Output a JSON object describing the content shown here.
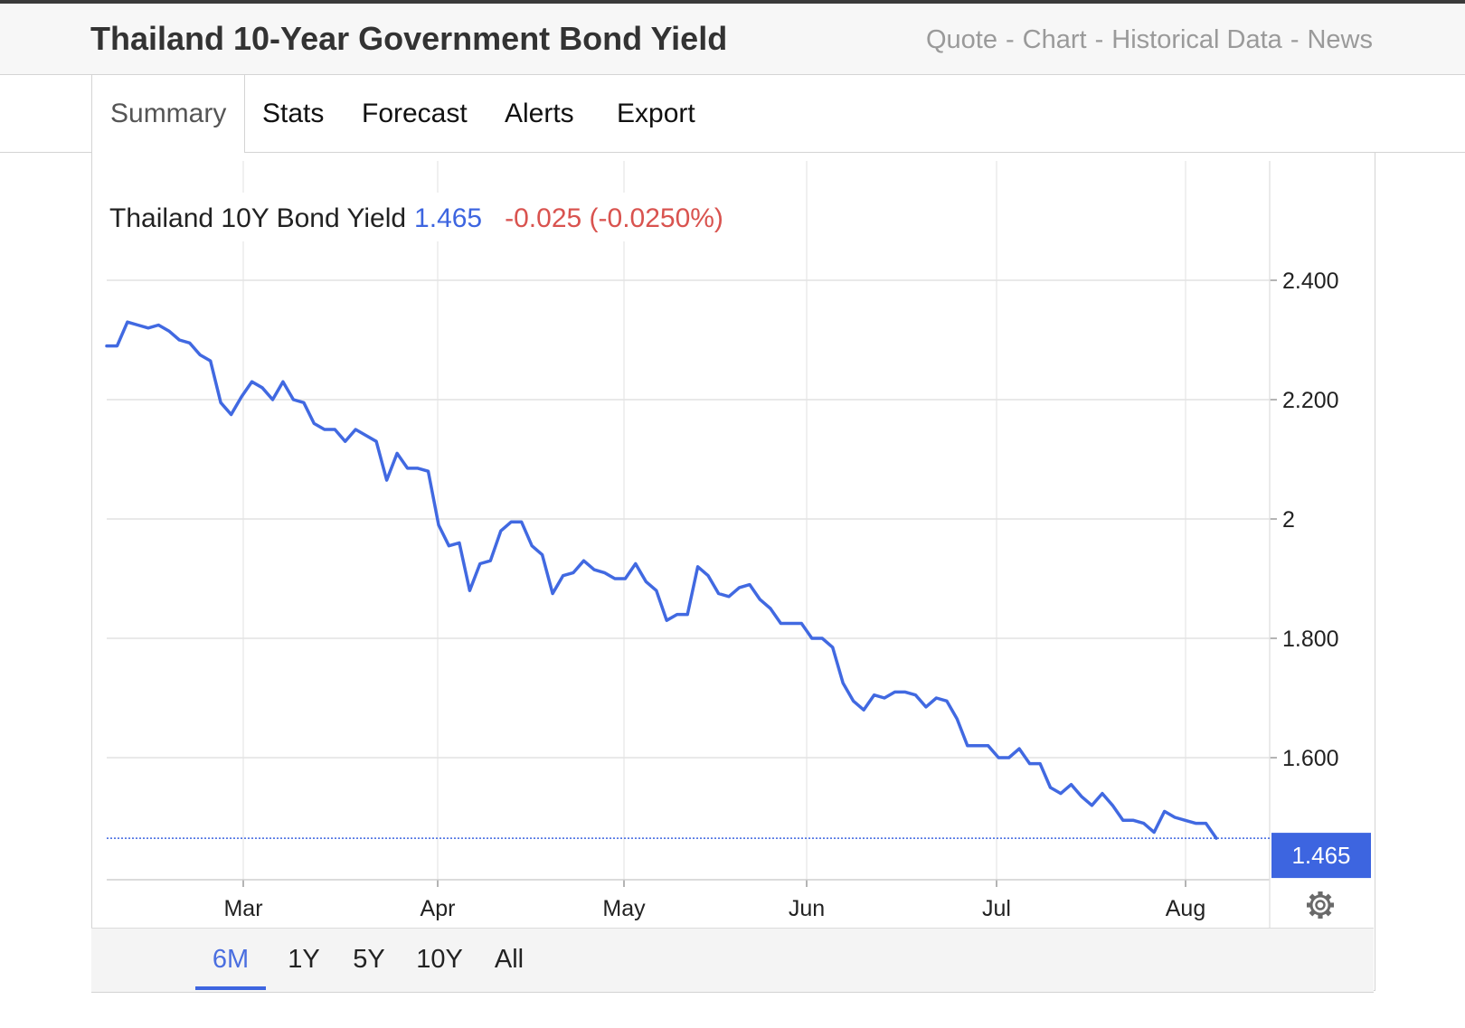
{
  "header": {
    "title": "Thailand 10-Year Government Bond Yield",
    "links": [
      "Quote",
      "Chart",
      "Historical Data",
      "News"
    ],
    "separator": "-"
  },
  "tabs": [
    "Summary",
    "Stats",
    "Forecast",
    "Alerts",
    "Export"
  ],
  "legend": {
    "name": "Thailand 10Y Bond Yield",
    "value": "1.465",
    "change": "-0.025 (-0.0250%)"
  },
  "last_price_tag": "1.465",
  "ranges": [
    "6M",
    "1Y",
    "5Y",
    "10Y",
    "All"
  ],
  "active_range": "6M",
  "colors": {
    "line": "#4169e1",
    "change_negative": "#d9534f",
    "value": "#3d65e0"
  },
  "icons": {
    "settings": "gear-icon"
  },
  "chart_data": {
    "type": "line",
    "series": [
      {
        "name": "Thailand 10Y Bond Yield",
        "values": [
          2.29,
          2.29,
          2.33,
          2.325,
          2.32,
          2.325,
          2.315,
          2.3,
          2.295,
          2.275,
          2.265,
          2.195,
          2.175,
          2.205,
          2.23,
          2.22,
          2.2,
          2.23,
          2.2,
          2.195,
          2.16,
          2.15,
          2.15,
          2.13,
          2.15,
          2.14,
          2.13,
          2.065,
          2.11,
          2.085,
          2.085,
          2.08,
          1.99,
          1.955,
          1.96,
          1.88,
          1.925,
          1.93,
          1.98,
          1.995,
          1.995,
          1.955,
          1.94,
          1.875,
          1.905,
          1.91,
          1.93,
          1.915,
          1.91,
          1.9,
          1.9,
          1.925,
          1.895,
          1.88,
          1.83,
          1.84,
          1.84,
          1.92,
          1.905,
          1.875,
          1.87,
          1.885,
          1.89,
          1.865,
          1.85,
          1.825,
          1.825,
          1.825,
          1.8,
          1.8,
          1.785,
          1.725,
          1.695,
          1.68,
          1.705,
          1.7,
          1.71,
          1.71,
          1.705,
          1.685,
          1.7,
          1.695,
          1.665,
          1.62,
          1.62,
          1.62,
          1.6,
          1.6,
          1.615,
          1.59,
          1.59,
          1.55,
          1.54,
          1.555,
          1.535,
          1.52,
          1.54,
          1.52,
          1.495,
          1.495,
          1.49,
          1.475,
          1.51,
          1.5,
          1.495,
          1.49,
          1.49,
          1.465
        ]
      }
    ],
    "x_tick_labels": [
      "Mar",
      "Apr",
      "May",
      "Jun",
      "Jul",
      "Aug"
    ],
    "y_tick_labels": [
      "2.400",
      "2.200",
      "2",
      "1.800",
      "1.600"
    ],
    "y_ticks": [
      2.4,
      2.2,
      2.0,
      1.8,
      1.6
    ],
    "ylim": [
      1.4,
      2.5
    ],
    "last_value": 1.465,
    "grid": true
  }
}
